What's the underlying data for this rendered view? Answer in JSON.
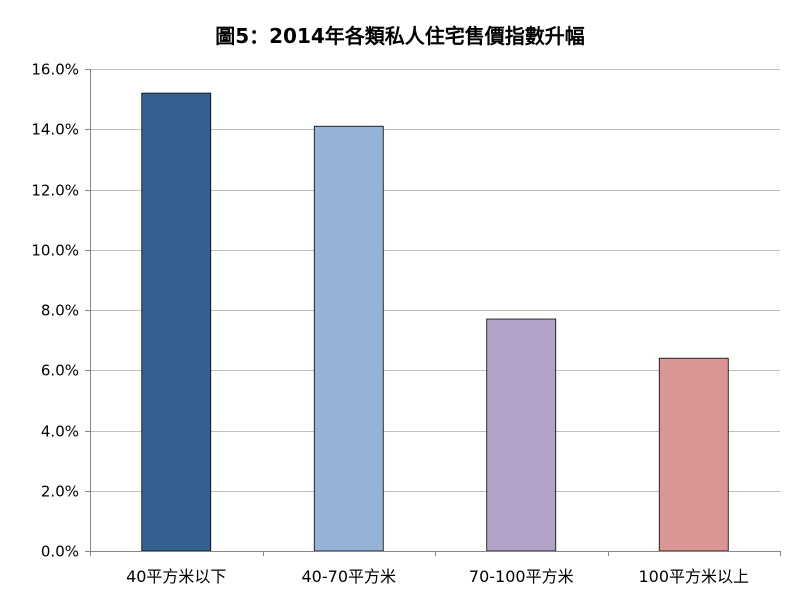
{
  "chart_data": {
    "type": "bar",
    "title": "圖5：2014年各類私人住宅售價指數升幅",
    "xlabel": "",
    "ylabel": "",
    "categories": [
      "40平方米以下",
      "40-70平方米",
      "70-100平方米",
      "100平方米以上"
    ],
    "values": [
      15.2,
      14.1,
      7.7,
      6.4
    ],
    "value_unit": "%",
    "ylim": [
      0,
      16
    ],
    "y_ticks": [
      0,
      2,
      4,
      6,
      8,
      10,
      12,
      14,
      16
    ],
    "y_tick_labels": [
      "0.0%",
      "2.0%",
      "4.0%",
      "6.0%",
      "8.0%",
      "10.0%",
      "12.0%",
      "14.0%",
      "16.0%"
    ],
    "grid": true,
    "legend": "none",
    "bar_colors": [
      "#376092",
      "#95B3D7",
      "#B3A2C7",
      "#D99694"
    ],
    "gridline_color": "#bfbfbf",
    "axis_color": "#868686"
  }
}
